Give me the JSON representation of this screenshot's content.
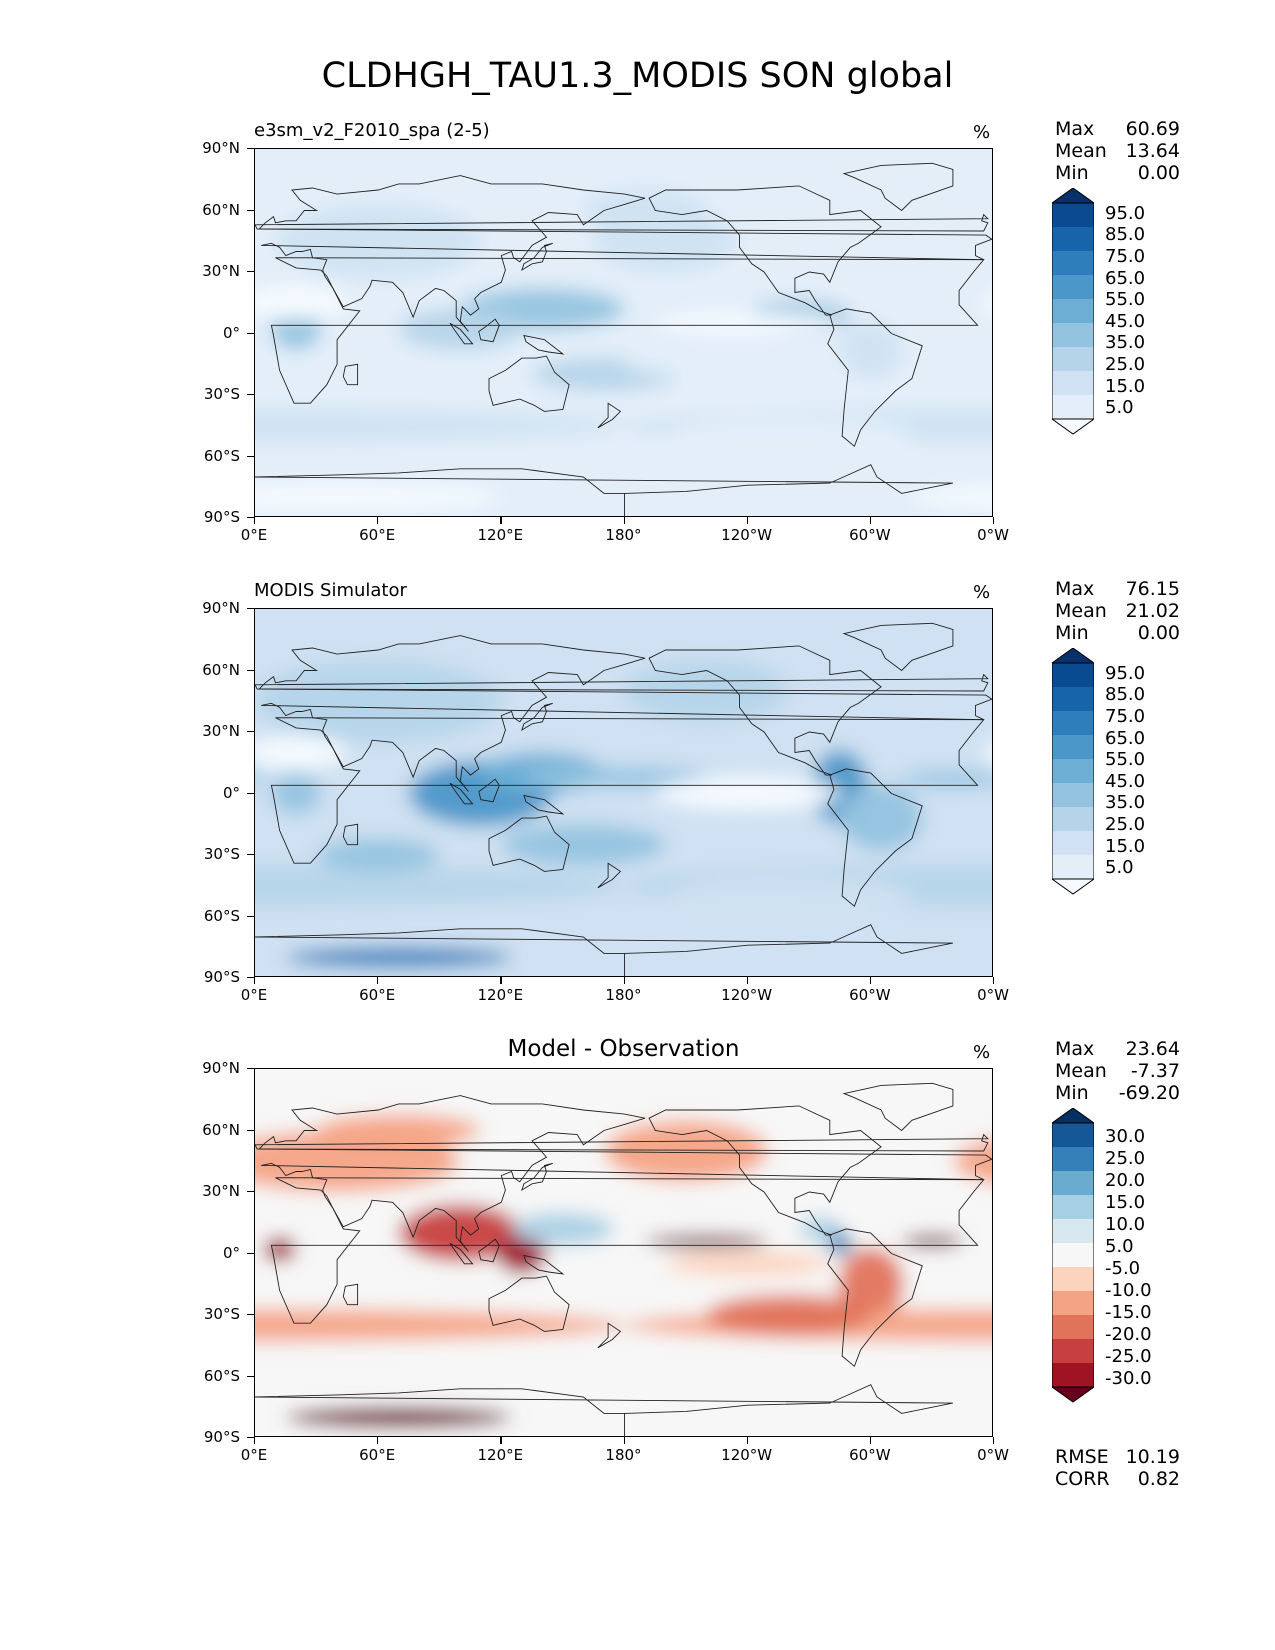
{
  "title": "CLDHGH_TAU1.3_MODIS SON global",
  "units": "%",
  "lat_ticks": [
    "90°N",
    "60°N",
    "30°N",
    "0°",
    "30°S",
    "60°S",
    "90°S"
  ],
  "lon_ticks": [
    "0°E",
    "60°E",
    "120°E",
    "180°",
    "120°W",
    "60°W",
    "0°W"
  ],
  "panels": [
    {
      "title": "e3sm_v2_F2010_spa (2-5)",
      "title_style": "left",
      "stats": {
        "max_label": "Max",
        "max": "60.69",
        "mean_label": "Mean",
        "mean": "13.64",
        "min_label": "Min",
        "min": "0.00"
      },
      "colorbar_labels": [
        "95.0",
        "85.0",
        "75.0",
        "65.0",
        "55.0",
        "45.0",
        "35.0",
        "25.0",
        "15.0",
        "5.0"
      ]
    },
    {
      "title": "MODIS Simulator",
      "title_style": "left",
      "stats": {
        "max_label": "Max",
        "max": "76.15",
        "mean_label": "Mean",
        "mean": "21.02",
        "min_label": "Min",
        "min": "0.00"
      },
      "colorbar_labels": [
        "95.0",
        "85.0",
        "75.0",
        "65.0",
        "55.0",
        "45.0",
        "35.0",
        "25.0",
        "15.0",
        "5.0"
      ]
    },
    {
      "title": "Model - Observation",
      "title_style": "center",
      "stats": {
        "max_label": "Max",
        "max": "23.64",
        "mean_label": "Mean",
        "mean": "-7.37",
        "min_label": "Min",
        "min": "-69.20"
      },
      "colorbar_labels": [
        "30.0",
        "25.0",
        "20.0",
        "15.0",
        "10.0",
        "5.0",
        "-5.0",
        "-10.0",
        "-15.0",
        "-20.0",
        "-25.0",
        "-30.0"
      ],
      "rmse_label": "RMSE",
      "rmse": "10.19",
      "corr_label": "CORR",
      "corr": "0.82"
    }
  ],
  "colors": {
    "blues": [
      "#f7fbff",
      "#e3eef9",
      "#cfe1f2",
      "#b5d4e9",
      "#93c3df",
      "#6daed5",
      "#4b97c9",
      "#2f7ebc",
      "#1864aa",
      "#0a4a90",
      "#08306b"
    ],
    "rdbu": [
      "#67001f",
      "#9f1325",
      "#c7403f",
      "#e1735b",
      "#f4a385",
      "#fcd3bd",
      "#f7f7f7",
      "#d8e8f1",
      "#a8d0e4",
      "#6aabd0",
      "#3480b9",
      "#165797",
      "#053061"
    ]
  }
}
